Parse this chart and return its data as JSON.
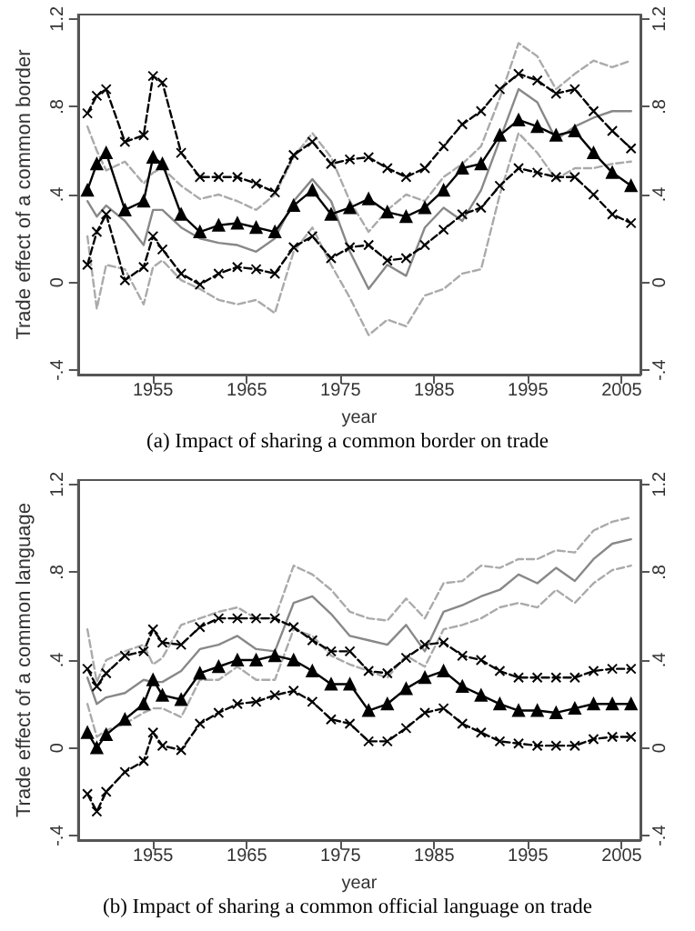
{
  "chart_data": [
    {
      "type": "line",
      "title": "(a) Impact of sharing a common border on trade",
      "xlabel": "year",
      "ylabel": "Trade effect of a common border",
      "x": [
        1948,
        1949,
        1950,
        1952,
        1954,
        1955,
        1956,
        1958,
        1960,
        1962,
        1964,
        1966,
        1968,
        1970,
        1972,
        1974,
        1976,
        1978,
        1980,
        1982,
        1984,
        1986,
        1988,
        1990,
        1992,
        1994,
        1996,
        1998,
        2000,
        2002,
        2004,
        2006
      ],
      "xlim": [
        1947,
        2007
      ],
      "xticks": [
        1955,
        1965,
        1975,
        1985,
        1995,
        2005
      ],
      "ylim": [
        -0.42,
        1.22
      ],
      "yticks": [
        {
          "value": -0.4,
          "label": "-.4"
        },
        {
          "value": 0,
          "label": "0"
        },
        {
          "value": 0.4,
          "label": ".4"
        },
        {
          "value": 0.8,
          "label": ".8"
        },
        {
          "value": 1.2,
          "label": "1.2"
        }
      ],
      "y2lim": [
        -0.42,
        1.22
      ],
      "y2ticks": [
        {
          "value": -0.4,
          "label": "-.4"
        },
        {
          "value": 0,
          "label": "0"
        },
        {
          "value": 0.4,
          "label": ".4"
        },
        {
          "value": 0.8,
          "label": ".8"
        },
        {
          "value": 1.2,
          "label": "1.2"
        }
      ],
      "grid": false,
      "series": [
        {
          "color": "#aaaaaa",
          "line_style": "dashed",
          "marker": "none",
          "values": [
            0.71,
            0.6,
            0.51,
            0.55,
            0.45,
            0.5,
            0.52,
            0.44,
            0.38,
            0.4,
            0.37,
            0.33,
            0.4,
            0.57,
            0.68,
            0.57,
            0.37,
            0.23,
            0.33,
            0.4,
            0.37,
            0.48,
            0.54,
            0.62,
            0.84,
            1.09,
            1.03,
            0.88,
            0.95,
            1.01,
            0.98,
            1.01
          ]
        },
        {
          "color": "#aaaaaa",
          "line_style": "dashed",
          "marker": "none",
          "values": [
            0.21,
            -0.12,
            0.08,
            0.06,
            -0.1,
            0.07,
            0.1,
            0.01,
            -0.03,
            -0.08,
            -0.1,
            -0.08,
            -0.14,
            0.14,
            0.25,
            0.08,
            -0.07,
            -0.24,
            -0.17,
            -0.2,
            -0.06,
            -0.03,
            0.04,
            0.06,
            0.4,
            0.68,
            0.59,
            0.47,
            0.52,
            0.52,
            0.54,
            0.55
          ]
        },
        {
          "color": "#888888",
          "line_style": "solid",
          "marker": "none",
          "values": [
            0.37,
            0.3,
            0.35,
            0.28,
            0.17,
            0.33,
            0.33,
            0.25,
            0.2,
            0.18,
            0.17,
            0.14,
            0.2,
            0.37,
            0.47,
            0.37,
            0.14,
            -0.03,
            0.08,
            0.03,
            0.25,
            0.34,
            0.28,
            0.42,
            0.65,
            0.88,
            0.82,
            0.65,
            0.71,
            0.75,
            0.78,
            0.78
          ]
        },
        {
          "color": "#000000",
          "line_style": "dashed",
          "marker": "cross",
          "values": [
            0.77,
            0.85,
            0.88,
            0.64,
            0.67,
            0.94,
            0.91,
            0.59,
            0.48,
            0.48,
            0.48,
            0.45,
            0.41,
            0.58,
            0.64,
            0.54,
            0.56,
            0.57,
            0.52,
            0.48,
            0.52,
            0.62,
            0.72,
            0.78,
            0.88,
            0.95,
            0.92,
            0.86,
            0.88,
            0.78,
            0.69,
            0.61
          ]
        },
        {
          "color": "#000000",
          "line_style": "dashed",
          "marker": "cross",
          "values": [
            0.08,
            0.23,
            0.31,
            0.01,
            0.07,
            0.21,
            0.15,
            0.04,
            -0.01,
            0.04,
            0.07,
            0.06,
            0.04,
            0.16,
            0.21,
            0.11,
            0.16,
            0.17,
            0.1,
            0.11,
            0.17,
            0.24,
            0.31,
            0.34,
            0.44,
            0.52,
            0.5,
            0.48,
            0.48,
            0.4,
            0.31,
            0.27
          ]
        },
        {
          "color": "#000000",
          "line_style": "solid",
          "marker": "triangle",
          "values": [
            0.42,
            0.54,
            0.59,
            0.33,
            0.37,
            0.57,
            0.54,
            0.31,
            0.23,
            0.26,
            0.27,
            0.25,
            0.23,
            0.35,
            0.42,
            0.31,
            0.34,
            0.38,
            0.32,
            0.3,
            0.34,
            0.42,
            0.52,
            0.54,
            0.67,
            0.74,
            0.71,
            0.67,
            0.69,
            0.59,
            0.5,
            0.44
          ]
        }
      ]
    },
    {
      "type": "line",
      "title": "(b) Impact of sharing a common official language on trade",
      "xlabel": "year",
      "ylabel": "Trade effect of a common language",
      "x": [
        1948,
        1949,
        1950,
        1952,
        1954,
        1955,
        1956,
        1958,
        1960,
        1962,
        1964,
        1966,
        1968,
        1970,
        1972,
        1974,
        1976,
        1978,
        1980,
        1982,
        1984,
        1986,
        1988,
        1990,
        1992,
        1994,
        1996,
        1998,
        2000,
        2002,
        2004,
        2006
      ],
      "xlim": [
        1947,
        2007
      ],
      "xticks": [
        1955,
        1965,
        1975,
        1985,
        1995,
        2005
      ],
      "ylim": [
        -0.42,
        1.22
      ],
      "yticks": [
        {
          "value": -0.4,
          "label": "-.4"
        },
        {
          "value": 0,
          "label": "0"
        },
        {
          "value": 0.4,
          "label": ".4"
        },
        {
          "value": 0.8,
          "label": ".8"
        },
        {
          "value": 1.2,
          "label": "1.2"
        }
      ],
      "y2lim": [
        -0.42,
        1.22
      ],
      "y2ticks": [
        {
          "value": -0.4,
          "label": "-.4"
        },
        {
          "value": 0,
          "label": "0"
        },
        {
          "value": 0.4,
          "label": ".4"
        },
        {
          "value": 0.8,
          "label": ".8"
        },
        {
          "value": 1.2,
          "label": "1.2"
        }
      ],
      "grid": false,
      "series": [
        {
          "color": "#aaaaaa",
          "line_style": "dashed",
          "marker": "none",
          "values": [
            0.54,
            0.3,
            0.4,
            0.44,
            0.47,
            0.38,
            0.41,
            0.56,
            0.59,
            0.62,
            0.64,
            0.59,
            0.59,
            0.83,
            0.79,
            0.72,
            0.62,
            0.59,
            0.58,
            0.68,
            0.59,
            0.75,
            0.76,
            0.83,
            0.82,
            0.86,
            0.86,
            0.9,
            0.89,
            0.99,
            1.03,
            1.05
          ]
        },
        {
          "color": "#aaaaaa",
          "line_style": "dashed",
          "marker": "none",
          "values": [
            0.2,
            0.05,
            0.08,
            0.11,
            0.16,
            0.18,
            0.18,
            0.14,
            0.31,
            0.31,
            0.37,
            0.31,
            0.31,
            0.54,
            0.51,
            0.42,
            0.38,
            0.35,
            0.32,
            0.42,
            0.37,
            0.54,
            0.56,
            0.59,
            0.64,
            0.66,
            0.64,
            0.72,
            0.66,
            0.75,
            0.81,
            0.83
          ]
        },
        {
          "color": "#888888",
          "line_style": "solid",
          "marker": "none",
          "values": [
            0.32,
            0.2,
            0.23,
            0.25,
            0.31,
            0.3,
            0.3,
            0.35,
            0.45,
            0.47,
            0.51,
            0.45,
            0.44,
            0.66,
            0.69,
            0.61,
            0.51,
            0.49,
            0.47,
            0.56,
            0.44,
            0.62,
            0.65,
            0.69,
            0.72,
            0.79,
            0.75,
            0.82,
            0.76,
            0.86,
            0.93,
            0.95
          ]
        },
        {
          "color": "#000000",
          "line_style": "dashed",
          "marker": "cross",
          "values": [
            0.36,
            0.28,
            0.34,
            0.42,
            0.44,
            0.54,
            0.48,
            0.47,
            0.55,
            0.59,
            0.59,
            0.59,
            0.59,
            0.55,
            0.49,
            0.44,
            0.44,
            0.35,
            0.34,
            0.41,
            0.47,
            0.48,
            0.42,
            0.4,
            0.35,
            0.32,
            0.32,
            0.32,
            0.32,
            0.35,
            0.36,
            0.36
          ]
        },
        {
          "color": "#000000",
          "line_style": "dashed",
          "marker": "cross",
          "values": [
            -0.21,
            -0.29,
            -0.2,
            -0.11,
            -0.06,
            0.07,
            0.01,
            -0.01,
            0.11,
            0.16,
            0.2,
            0.21,
            0.24,
            0.26,
            0.21,
            0.13,
            0.11,
            0.03,
            0.03,
            0.09,
            0.16,
            0.18,
            0.11,
            0.07,
            0.03,
            0.02,
            0.01,
            0.01,
            0.01,
            0.04,
            0.05,
            0.05
          ]
        },
        {
          "color": "#000000",
          "line_style": "solid",
          "marker": "triangle",
          "values": [
            0.07,
            0.0,
            0.06,
            0.13,
            0.2,
            0.31,
            0.24,
            0.22,
            0.34,
            0.37,
            0.4,
            0.4,
            0.42,
            0.4,
            0.35,
            0.29,
            0.29,
            0.17,
            0.2,
            0.27,
            0.32,
            0.35,
            0.28,
            0.24,
            0.2,
            0.17,
            0.17,
            0.16,
            0.18,
            0.2,
            0.2,
            0.2
          ]
        }
      ]
    }
  ]
}
